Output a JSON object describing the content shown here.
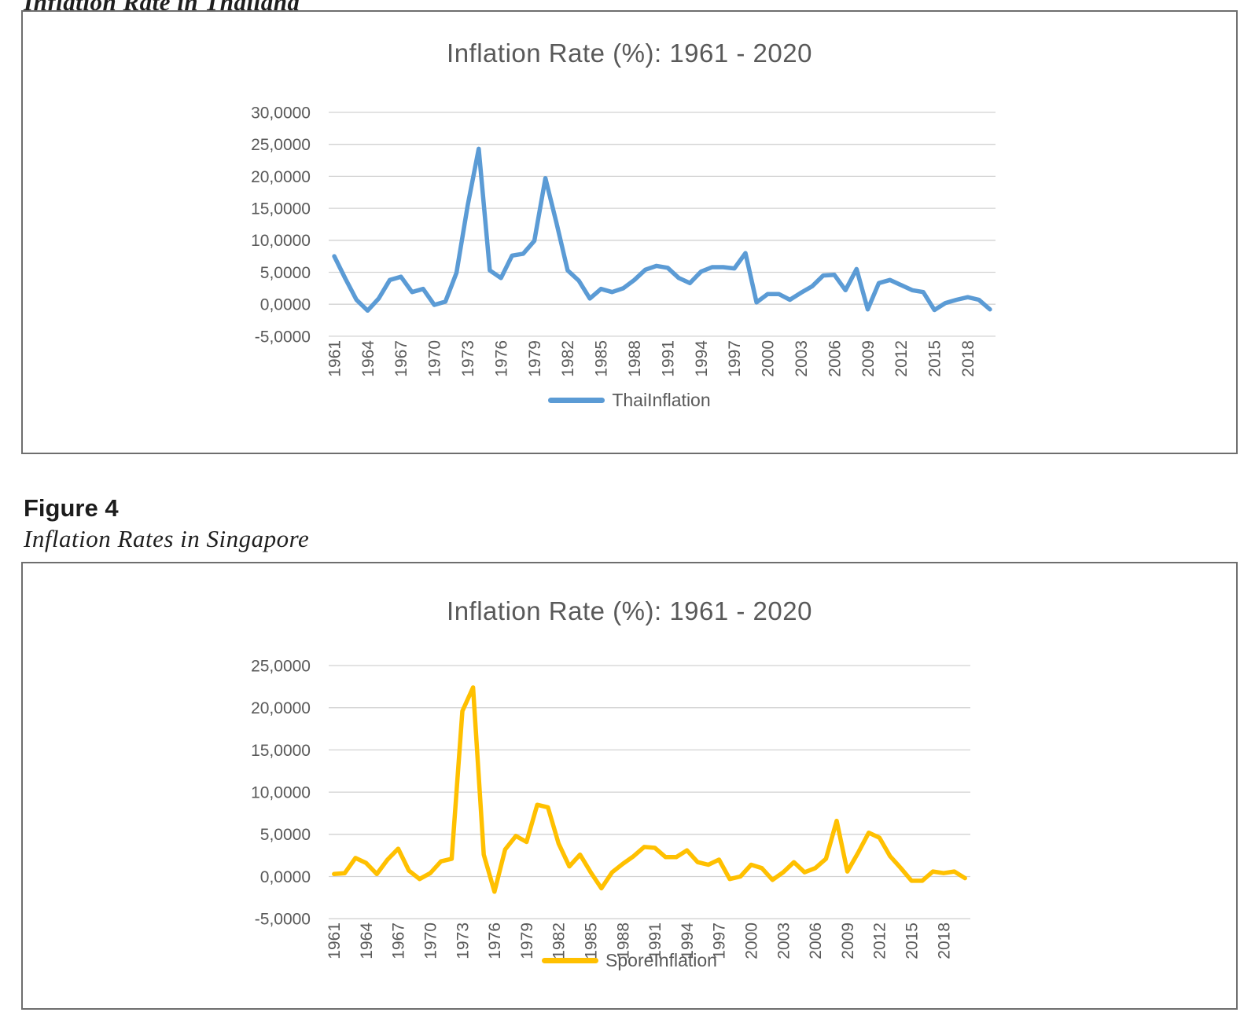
{
  "page": {
    "caption_top": "Inflation Rate in Thailand",
    "figure_label": "Figure 4",
    "caption_bottom": "Inflation Rates in Singapore"
  },
  "colors": {
    "thai_line": "#5B9BD5",
    "spore_line": "#FFC000",
    "gridline": "#D2D2D2",
    "axis_text": "#595959",
    "title_text": "#595959",
    "frame_border": "#6E6E6E"
  },
  "chart_data": [
    {
      "id": "thai",
      "type": "line",
      "title": "Inflation Rate (%): 1961 - 2020",
      "x_range": [
        1961,
        2020
      ],
      "x_tick_labels": [
        "1961",
        "1964",
        "1967",
        "1970",
        "1973",
        "1976",
        "1979",
        "1982",
        "1985",
        "1988",
        "1991",
        "1994",
        "1997",
        "2000",
        "2003",
        "2006",
        "2009",
        "2012",
        "2015",
        "2018"
      ],
      "y_tick_labels": [
        "30,0000",
        "25,0000",
        "20,0000",
        "15,0000",
        "10,0000",
        "5,0000",
        "0,0000",
        "-5,0000"
      ],
      "ylim": [
        -5,
        30
      ],
      "y_step": 5,
      "grid": true,
      "legend_position": "bottom",
      "series": [
        {
          "name": "ThaiInflation",
          "color": "#5B9BD5",
          "values": [
            7.5,
            4.0,
            0.7,
            -1.0,
            0.9,
            3.8,
            4.3,
            1.9,
            2.4,
            -0.1,
            0.4,
            4.9,
            15.4,
            24.3,
            5.3,
            4.1,
            7.6,
            7.9,
            9.9,
            19.7,
            12.7,
            5.3,
            3.7,
            0.9,
            2.4,
            1.9,
            2.5,
            3.8,
            5.4,
            6.0,
            5.7,
            4.1,
            3.3,
            5.1,
            5.8,
            5.8,
            5.6,
            8.0,
            0.3,
            1.6,
            1.6,
            0.7,
            1.8,
            2.8,
            4.5,
            4.6,
            2.2,
            5.5,
            -0.8,
            3.3,
            3.8,
            3.0,
            2.2,
            1.9,
            -0.9,
            0.2,
            0.7,
            1.1,
            0.7,
            -0.8
          ]
        }
      ]
    },
    {
      "id": "spore",
      "type": "line",
      "title": "Inflation Rate (%): 1961 - 2020",
      "x_range": [
        1961,
        2020
      ],
      "x_tick_labels": [
        "1961",
        "1964",
        "1967",
        "1970",
        "1973",
        "1976",
        "1979",
        "1982",
        "1985",
        "1988",
        "1991",
        "1994",
        "1997",
        "2000",
        "2003",
        "2006",
        "2009",
        "2012",
        "2015",
        "2018"
      ],
      "y_tick_labels": [
        "25,0000",
        "20,0000",
        "15,0000",
        "10,0000",
        "5,0000",
        "0,0000",
        "-5,0000"
      ],
      "ylim": [
        -5,
        25
      ],
      "y_step": 5,
      "grid": true,
      "legend_position": "bottom",
      "series": [
        {
          "name": "SporeInflation",
          "color": "#FFC000",
          "values": [
            0.3,
            0.4,
            2.2,
            1.6,
            0.3,
            2.0,
            3.3,
            0.7,
            -0.3,
            0.4,
            1.8,
            2.1,
            19.6,
            22.4,
            2.6,
            -1.8,
            3.2,
            4.8,
            4.1,
            8.5,
            8.2,
            3.9,
            1.2,
            2.6,
            0.5,
            -1.4,
            0.5,
            1.5,
            2.4,
            3.5,
            3.4,
            2.3,
            2.3,
            3.1,
            1.7,
            1.4,
            2.0,
            -0.3,
            0.0,
            1.4,
            1.0,
            -0.4,
            0.5,
            1.7,
            0.5,
            1.0,
            2.1,
            6.6,
            0.6,
            2.8,
            5.2,
            4.6,
            2.4,
            1.0,
            -0.5,
            -0.5,
            0.6,
            0.4,
            0.6,
            -0.2
          ]
        }
      ]
    }
  ]
}
